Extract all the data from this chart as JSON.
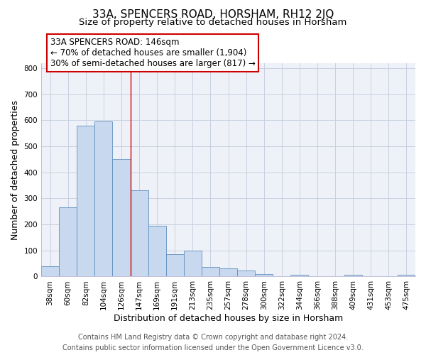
{
  "title": "33A, SPENCERS ROAD, HORSHAM, RH12 2JQ",
  "subtitle": "Size of property relative to detached houses in Horsham",
  "xlabel": "Distribution of detached houses by size in Horsham",
  "ylabel": "Number of detached properties",
  "bar_labels": [
    "38sqm",
    "60sqm",
    "82sqm",
    "104sqm",
    "126sqm",
    "147sqm",
    "169sqm",
    "191sqm",
    "213sqm",
    "235sqm",
    "257sqm",
    "278sqm",
    "300sqm",
    "322sqm",
    "344sqm",
    "366sqm",
    "388sqm",
    "409sqm",
    "431sqm",
    "453sqm",
    "475sqm"
  ],
  "bar_values": [
    40,
    265,
    580,
    595,
    450,
    330,
    195,
    85,
    100,
    37,
    32,
    22,
    10,
    0,
    8,
    0,
    0,
    8,
    0,
    0,
    8
  ],
  "bar_color": "#c8d8ee",
  "bar_edge_color": "#6090c0",
  "vline_x": 5,
  "vline_color": "#cc0000",
  "annotation_line1": "33A SPENCERS ROAD: 146sqm",
  "annotation_line2": "← 70% of detached houses are smaller (1,904)",
  "annotation_line3": "30% of semi-detached houses are larger (817) →",
  "annotation_box_edgecolor": "#cc0000",
  "ylim": [
    0,
    820
  ],
  "yticks": [
    0,
    100,
    200,
    300,
    400,
    500,
    600,
    700,
    800
  ],
  "footer_line1": "Contains HM Land Registry data © Crown copyright and database right 2024.",
  "footer_line2": "Contains public sector information licensed under the Open Government Licence v3.0.",
  "bg_color": "#ffffff",
  "plot_bg_color": "#eef2f8",
  "grid_color": "#c8d0e0",
  "title_fontsize": 11,
  "subtitle_fontsize": 9.5,
  "axis_label_fontsize": 9,
  "tick_fontsize": 7.5,
  "annotation_fontsize": 8.5,
  "footer_fontsize": 7
}
